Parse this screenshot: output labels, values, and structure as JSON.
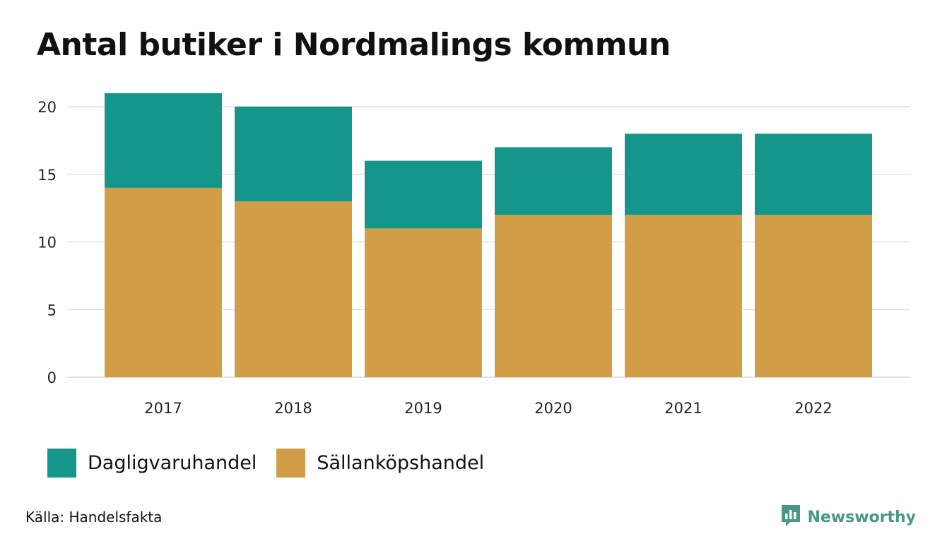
{
  "chart_data": {
    "type": "bar",
    "stacked": true,
    "title": "Antal butiker i Nordmalings kommun",
    "xlabel": "",
    "ylabel": "",
    "categories": [
      "2017",
      "2018",
      "2019",
      "2020",
      "2021",
      "2022"
    ],
    "series": [
      {
        "name": "Sällanköpshandel",
        "color": "#d19e47",
        "values": [
          14,
          13,
          11,
          12,
          12,
          12
        ]
      },
      {
        "name": "Dagligvaruhandel",
        "color": "#14968a",
        "values": [
          7,
          7,
          5,
          5,
          6,
          6
        ]
      }
    ],
    "yticks": [
      0,
      5,
      10,
      15,
      20
    ],
    "ylim": [
      0,
      21
    ],
    "grid": true,
    "legend": "bottom-left"
  },
  "legend": {
    "items": [
      {
        "label": "Dagligvaruhandel",
        "color": "#14968a"
      },
      {
        "label": "Sällanköpshandel",
        "color": "#d19e47"
      }
    ]
  },
  "footer": {
    "source": "Källa: Handelsfakta",
    "brand": "Newsworthy",
    "brand_color": "#4a9688"
  },
  "colors": {
    "grid": "#e0e0e0",
    "axis_text": "#222222"
  }
}
